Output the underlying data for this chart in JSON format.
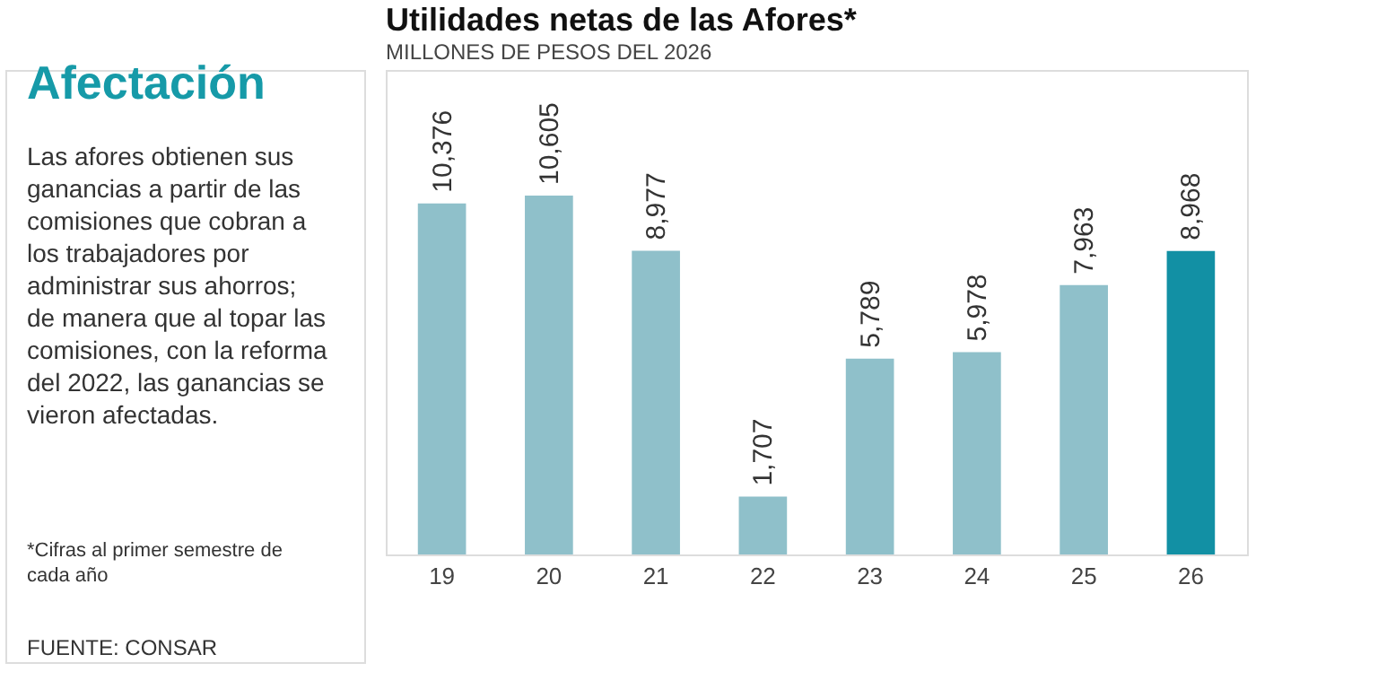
{
  "chart_data": {
    "type": "bar",
    "title": "Utilidades netas de las Afores*",
    "subtitle": "MILLONES DE PESOS DEL 2026",
    "categories": [
      "19",
      "20",
      "21",
      "22",
      "23",
      "24",
      "25",
      "26"
    ],
    "values": [
      10376,
      10605,
      8977,
      1707,
      5789,
      5978,
      7963,
      8968
    ],
    "colors": [
      "#8fc0ca",
      "#8fc0ca",
      "#8fc0ca",
      "#8fc0ca",
      "#8fc0ca",
      "#8fc0ca",
      "#8fc0ca",
      "#1290a4"
    ],
    "value_labels": [
      "10,376",
      "10,605",
      "8,977",
      "1,707",
      "5,789",
      "5,978",
      "7,963",
      "8,968"
    ],
    "grid": false,
    "annotations": [
      "Afectación",
      "Las afores obtienen sus ganancias a partir de las comisiones que cobran a los trabajadores por administrar sus ahorros; de manera que al topar las comisiones, con la reforma del 2022, las ganancias se vieron afectadas.",
      "*Cifras al primer semestre de cada año",
      "FUENTE: CONSAR"
    ]
  }
}
